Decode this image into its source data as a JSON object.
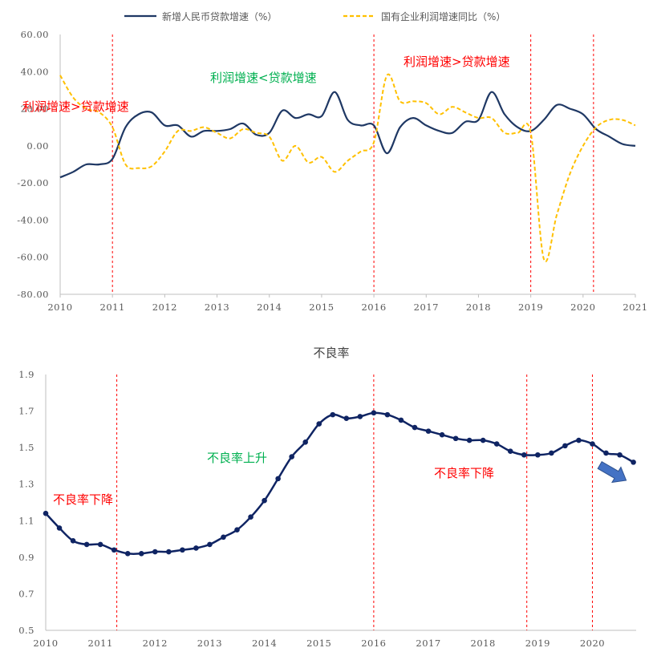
{
  "chart_data": [
    {
      "type": "line",
      "title": "",
      "legend_position": "top",
      "x_ticks": [
        "2010",
        "2011",
        "2012",
        "2013",
        "2014",
        "2015",
        "2016",
        "2017",
        "2018",
        "2019",
        "2020",
        "2021"
      ],
      "y_ticks": [
        "60.00",
        "40.00",
        "20.00",
        "0.00",
        "-20.00",
        "-40.00",
        "-60.00",
        "-80.00"
      ],
      "ylim": [
        -80,
        60
      ],
      "xlim": [
        2010,
        2021
      ],
      "series": [
        {
          "name": "新增人民币贷款增速（%）",
          "color": "#1f3864",
          "style": "solid",
          "x": [
            2010.0,
            2010.25,
            2010.5,
            2010.75,
            2011.0,
            2011.25,
            2011.5,
            2011.75,
            2012.0,
            2012.25,
            2012.5,
            2012.75,
            2013.0,
            2013.25,
            2013.5,
            2013.75,
            2014.0,
            2014.25,
            2014.5,
            2014.75,
            2015.0,
            2015.25,
            2015.5,
            2015.75,
            2016.0,
            2016.25,
            2016.5,
            2016.75,
            2017.0,
            2017.25,
            2017.5,
            2017.75,
            2018.0,
            2018.25,
            2018.5,
            2018.75,
            2019.0,
            2019.25,
            2019.5,
            2019.75,
            2020.0,
            2020.25,
            2020.5,
            2020.75,
            2021.0
          ],
          "y": [
            -17,
            -14,
            -10,
            -10,
            -7,
            10,
            17,
            18,
            11,
            11,
            5,
            8,
            8,
            9,
            12,
            6,
            7,
            19,
            15,
            17,
            16,
            29,
            14,
            11,
            11,
            -4,
            10,
            15,
            11,
            8,
            7,
            13,
            14,
            29,
            17,
            10,
            8,
            14,
            22,
            20,
            17,
            9,
            5,
            1,
            0
          ]
        },
        {
          "name": "国有企业利润增速同比（%）",
          "color": "#ffc000",
          "style": "dashed",
          "x": [
            2010.0,
            2010.25,
            2010.5,
            2010.75,
            2011.0,
            2011.25,
            2011.5,
            2011.75,
            2012.0,
            2012.25,
            2012.5,
            2012.75,
            2013.0,
            2013.25,
            2013.5,
            2013.75,
            2014.0,
            2014.25,
            2014.5,
            2014.75,
            2015.0,
            2015.25,
            2015.5,
            2015.75,
            2016.0,
            2016.25,
            2016.5,
            2016.75,
            2017.0,
            2017.25,
            2017.5,
            2017.75,
            2018.0,
            2018.25,
            2018.5,
            2018.75,
            2019.0,
            2019.25,
            2019.5,
            2019.75,
            2020.0,
            2020.25,
            2020.5,
            2020.75,
            2021.0
          ],
          "y": [
            38,
            26,
            20,
            18,
            10,
            -10,
            -12,
            -11,
            -3,
            8,
            8,
            10,
            7,
            4,
            9,
            7,
            5,
            -8,
            0,
            -9,
            -6,
            -14,
            -8,
            -3,
            2,
            38,
            24,
            24,
            23,
            17,
            21,
            18,
            15,
            15,
            7,
            7,
            7,
            -61,
            -37,
            -15,
            0,
            10,
            14,
            14,
            11
          ]
        }
      ],
      "vlines": [
        2011.0,
        2016.0,
        2019.0,
        2020.2
      ],
      "annotations": [
        {
          "text": "利润增速>贷款增速",
          "color": "#ff0000"
        },
        {
          "text": "利润增速<贷款增速",
          "color": "#00b050"
        },
        {
          "text": "利润增速>贷款增速",
          "color": "#ff0000"
        }
      ]
    },
    {
      "type": "line",
      "title": "不良率",
      "x_ticks": [
        "2010",
        "2011",
        "2012",
        "2013",
        "2014",
        "2015",
        "2016",
        "2017",
        "2018",
        "2019",
        "2020"
      ],
      "y_ticks": [
        "1.9",
        "1.7",
        "1.5",
        "1.3",
        "1.1",
        "0.9",
        "0.7",
        "0.5"
      ],
      "ylim": [
        0.5,
        1.9
      ],
      "xlim": [
        2010,
        2020.8
      ],
      "series": [
        {
          "name": "不良率",
          "color": "#0f2463",
          "markers": true,
          "x": [
            2010.0,
            2010.25,
            2010.5,
            2010.75,
            2011.0,
            2011.25,
            2011.5,
            2011.75,
            2012.0,
            2012.25,
            2012.5,
            2012.75,
            2013.0,
            2013.25,
            2013.5,
            2013.75,
            2014.0,
            2014.25,
            2014.5,
            2014.75,
            2015.0,
            2015.25,
            2015.5,
            2015.75,
            2016.0,
            2016.25,
            2016.5,
            2016.75,
            2017.0,
            2017.25,
            2017.5,
            2017.75,
            2018.0,
            2018.25,
            2018.5,
            2018.75,
            2019.0,
            2019.25,
            2019.5,
            2019.75,
            2020.0,
            2020.25,
            2020.5,
            2020.75
          ],
          "y": [
            1.14,
            1.06,
            0.99,
            0.97,
            0.97,
            0.94,
            0.92,
            0.92,
            0.93,
            0.93,
            0.94,
            0.95,
            0.97,
            1.01,
            1.05,
            1.12,
            1.21,
            1.33,
            1.45,
            1.53,
            1.63,
            1.68,
            1.66,
            1.67,
            1.69,
            1.68,
            1.65,
            1.61,
            1.59,
            1.57,
            1.55,
            1.54,
            1.54,
            1.52,
            1.48,
            1.46,
            1.46,
            1.47,
            1.51,
            1.54,
            1.52,
            1.47,
            1.46,
            1.42
          ]
        }
      ],
      "vlines": [
        2011.3,
        2016.0,
        2018.8,
        2020.0
      ],
      "annotations": [
        {
          "text": "不良率下降",
          "color": "#ff0000"
        },
        {
          "text": "不良率上升",
          "color": "#00b050"
        },
        {
          "text": "不良率下降",
          "color": "#ff0000"
        }
      ]
    }
  ]
}
